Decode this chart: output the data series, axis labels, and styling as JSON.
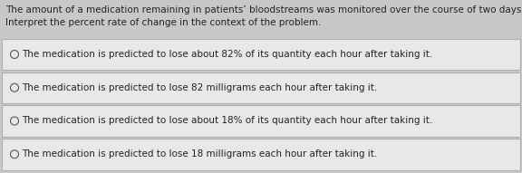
{
  "background_color": "#c8c8c8",
  "header_bg_color": "#d0d0d0",
  "option_bg_color": "#e8e8e8",
  "option_border_color": "#b0b0b0",
  "header_lines": [
    "The amount of a medication remaining in patients’ bloodstreams was monitored over the course of two days.  The eq",
    "Interpret the percent rate of change in the context of the problem."
  ],
  "options": [
    "The medication is predicted to lose about 82% of its quantity each hour after taking it.",
    "The medication is predicted to lose 82 milligrams each hour after taking it.",
    "The medication is predicted to lose about 18% of its quantity each hour after taking it.",
    "The medication is predicted to lose 18 milligrams each hour after taking it."
  ],
  "header_fontsize": 7.5,
  "option_fontsize": 7.5,
  "text_color": "#222222",
  "radio_color": "#555555",
  "radio_fill": "#e8e8e8",
  "figwidth": 5.76,
  "figheight": 1.91,
  "dpi": 100
}
